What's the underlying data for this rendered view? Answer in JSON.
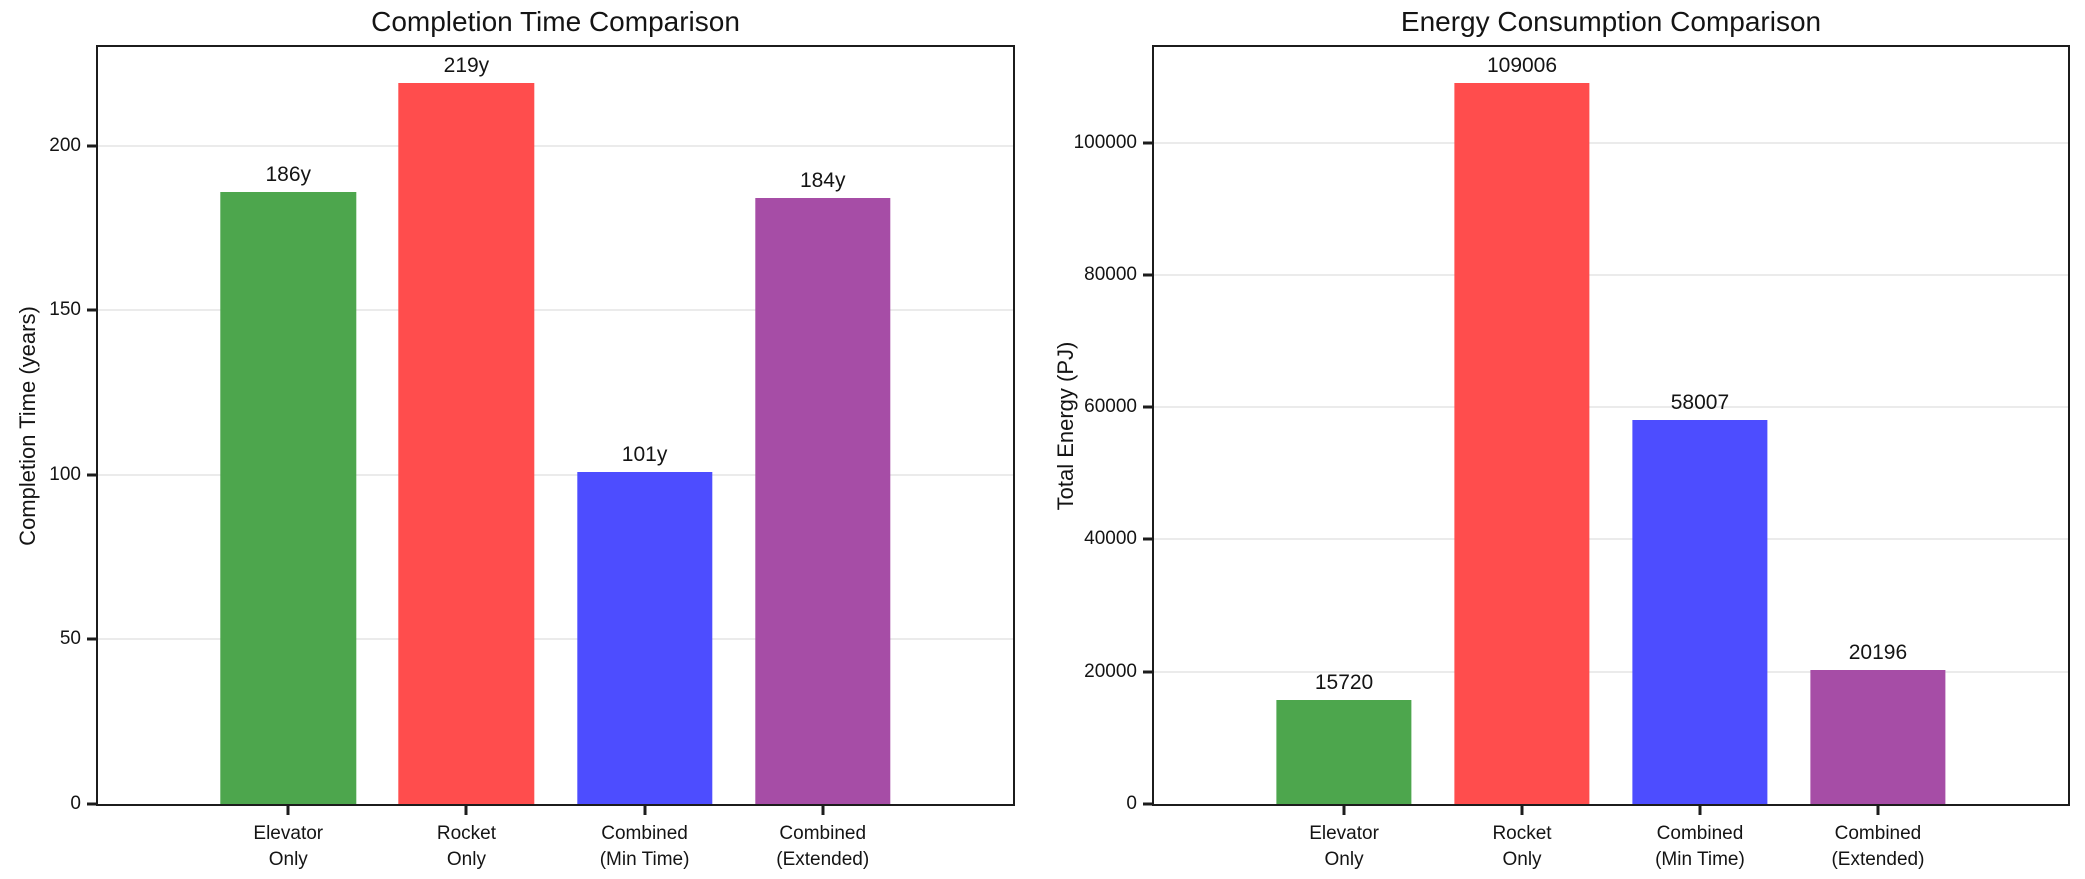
{
  "figure": {
    "background": "#ffffff",
    "spine_color": "#1c1c1c",
    "grid_color": "#ebebeb",
    "text_color": "#141414"
  },
  "chart_data": [
    {
      "type": "bar",
      "title": "Completion Time Comparison",
      "xlabel": "",
      "ylabel": "Completion Time (years)",
      "categories": [
        "Elevator\nOnly",
        "Rocket\nOnly",
        "Combined\n(Min Time)",
        "Combined\n(Extended)"
      ],
      "values": [
        186,
        219,
        101,
        184
      ],
      "bar_labels": [
        "186y",
        "219y",
        "101y",
        "184y"
      ],
      "bar_colors": [
        "#4DA64D",
        "#FF4D4D",
        "#4D4DFF",
        "#A64DA6"
      ],
      "yticks": [
        0,
        50,
        100,
        150,
        200
      ],
      "ylim": [
        0,
        229.95
      ],
      "grid": true,
      "legend": null
    },
    {
      "type": "bar",
      "title": "Energy Consumption Comparison",
      "xlabel": "",
      "ylabel": "Total Energy (PJ)",
      "categories": [
        "Elevator\nOnly",
        "Rocket\nOnly",
        "Combined\n(Min Time)",
        "Combined\n(Extended)"
      ],
      "values": [
        15720,
        109006,
        58007,
        20196
      ],
      "bar_labels": [
        "15720",
        "109006",
        "58007",
        "20196"
      ],
      "bar_colors": [
        "#4DA64D",
        "#FF4D4D",
        "#4D4DFF",
        "#A64DA6"
      ],
      "yticks": [
        0,
        20000,
        40000,
        60000,
        80000,
        100000
      ],
      "ylim": [
        0,
        114456.3
      ],
      "grid": true,
      "legend": null
    }
  ]
}
